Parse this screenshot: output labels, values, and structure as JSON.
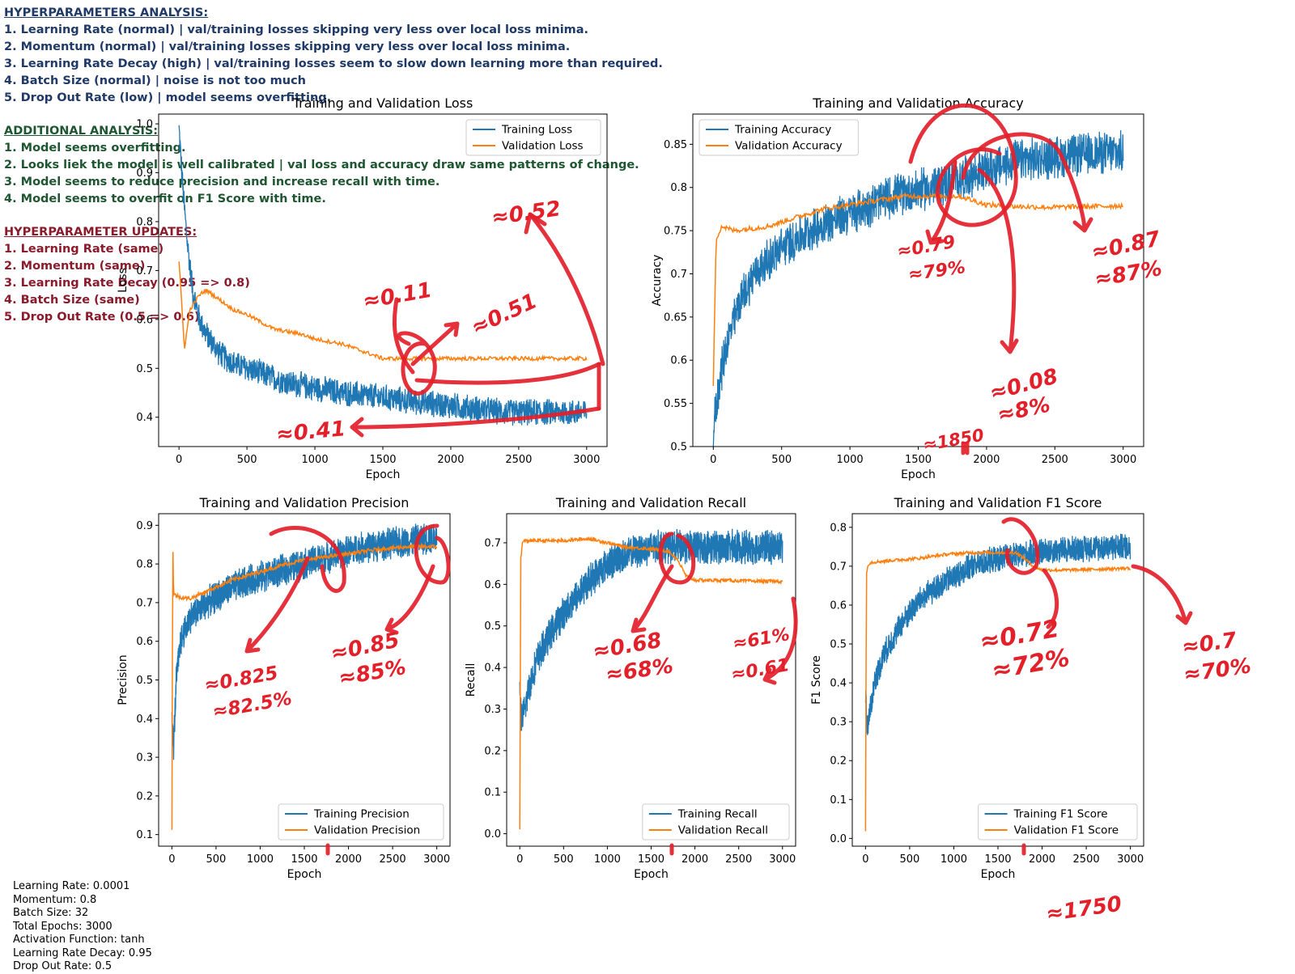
{
  "notes": {
    "analysis_title": "HYPERPARAMETERS ANALYSIS:",
    "analysis": [
      "1. Learning Rate (normal) | val/training losses skipping very less over local loss minima.",
      "2. Momentum (normal) | val/training losses skipping very less over local loss minima.",
      "3. Learning Rate Decay (high) | val/training losses seem to slow down learning more than required.",
      "4. Batch Size (normal) | noise is not too much",
      "5. Drop Out Rate (low) | model seems overfitting."
    ],
    "additional_title": "ADDITIONAL ANALYSIS:",
    "additional": [
      "1. Model seems overfitting.",
      "2. Looks liek the model is well calibrated | val loss and accuracy draw same patterns of change.",
      "3. Model seems to reduce precision and increase recall with time.",
      "4. Model seems to overfit on F1 Score with time."
    ],
    "updates_title": "HYPERPARAMETER UPDATES:",
    "updates": [
      "1. Learning Rate (same)",
      "2. Momentum (same)",
      "3. Learning Rate Decay (0.95 => 0.8)",
      "4. Batch Size (same)",
      "5. Drop Out Rate (0.5 => 0.6)"
    ]
  },
  "hyperparams": [
    "Learning Rate: 0.0001",
    "Momentum: 0.8",
    "Batch Size: 32",
    "Total Epochs: 3000",
    "Activation Function: tanh",
    "Learning Rate Decay: 0.95",
    "Drop Out Rate: 0.5"
  ],
  "colors": {
    "training": "#1f77b4",
    "validation": "#ff7f0e",
    "annotation": "#e3202a"
  },
  "chart_data": [
    {
      "id": "loss",
      "type": "line",
      "title": "Training and Validation Loss",
      "xlabel": "Epoch",
      "ylabel": "Loss",
      "xlim": [
        -150,
        3150
      ],
      "ylim": [
        0.34,
        1.02
      ],
      "xticks": [
        0,
        500,
        1000,
        1500,
        2000,
        2500,
        3000
      ],
      "yticks": [
        0.4,
        0.5,
        0.6,
        0.7,
        0.8,
        0.9,
        1.0
      ],
      "legend": "top-right",
      "series": [
        {
          "name": "Training Loss",
          "x": [
            0,
            30,
            60,
            100,
            150,
            200,
            300,
            400,
            600,
            800,
            1000,
            1200,
            1500,
            1800,
            2100,
            2400,
            2700,
            3000
          ],
          "y": [
            0.99,
            0.86,
            0.76,
            0.66,
            0.6,
            0.57,
            0.53,
            0.51,
            0.49,
            0.47,
            0.46,
            0.45,
            0.44,
            0.43,
            0.42,
            0.41,
            0.41,
            0.41
          ],
          "noise": 0.02
        },
        {
          "name": "Validation Loss",
          "x": [
            0,
            40,
            80,
            150,
            200,
            300,
            400,
            500,
            700,
            900,
            1000,
            1200,
            1300,
            1500,
            1700,
            1900,
            2100,
            2400,
            2700,
            3000
          ],
          "y": [
            0.72,
            0.54,
            0.62,
            0.65,
            0.66,
            0.64,
            0.62,
            0.61,
            0.58,
            0.57,
            0.56,
            0.55,
            0.54,
            0.52,
            0.52,
            0.52,
            0.52,
            0.52,
            0.52,
            0.52
          ],
          "noise": 0.004
        }
      ]
    },
    {
      "id": "accuracy",
      "type": "line",
      "title": "Training and Validation Accuracy",
      "xlabel": "Epoch",
      "ylabel": "Accuracy",
      "xlim": [
        -150,
        3150
      ],
      "ylim": [
        0.5,
        0.885
      ],
      "xticks": [
        0,
        500,
        1000,
        1500,
        2000,
        2500,
        3000
      ],
      "yticks": [
        0.5,
        0.55,
        0.6,
        0.65,
        0.7,
        0.75,
        0.8,
        0.85
      ],
      "legend": "top-left",
      "series": [
        {
          "name": "Training Accuracy",
          "x": [
            0,
            50,
            100,
            200,
            300,
            500,
            700,
            1000,
            1300,
            1600,
            1800,
            2000,
            2200,
            2500,
            2800,
            3000
          ],
          "y": [
            0.52,
            0.58,
            0.62,
            0.67,
            0.7,
            0.73,
            0.75,
            0.77,
            0.79,
            0.8,
            0.81,
            0.82,
            0.83,
            0.835,
            0.84,
            0.84
          ],
          "noise": 0.018
        },
        {
          "name": "Validation Accuracy",
          "x": [
            0,
            20,
            60,
            150,
            400,
            600,
            800,
            1000,
            1200,
            1400,
            1600,
            1800,
            1900,
            2000,
            2200,
            2500,
            2800,
            3000
          ],
          "y": [
            0.57,
            0.74,
            0.755,
            0.75,
            0.755,
            0.765,
            0.775,
            0.78,
            0.785,
            0.79,
            0.79,
            0.79,
            0.785,
            0.78,
            0.778,
            0.777,
            0.778,
            0.779
          ],
          "noise": 0.003
        }
      ]
    },
    {
      "id": "precision",
      "type": "line",
      "title": "Training and Validation Precision",
      "xlabel": "Epoch",
      "ylabel": "Precision",
      "xlim": [
        -150,
        3150
      ],
      "ylim": [
        0.07,
        0.93
      ],
      "xticks": [
        0,
        500,
        1000,
        1500,
        2000,
        2500,
        3000
      ],
      "yticks": [
        0.1,
        0.2,
        0.3,
        0.4,
        0.5,
        0.6,
        0.7,
        0.8,
        0.9
      ],
      "legend": "bottom-right",
      "series": [
        {
          "name": "Training Precision",
          "x": [
            0,
            20,
            50,
            100,
            200,
            400,
            600,
            900,
            1200,
            1500,
            1800,
            2100,
            2400,
            2700,
            3000
          ],
          "y": [
            0.38,
            0.33,
            0.5,
            0.6,
            0.66,
            0.7,
            0.73,
            0.76,
            0.78,
            0.8,
            0.82,
            0.84,
            0.85,
            0.86,
            0.87
          ],
          "noise": 0.03
        },
        {
          "name": "Validation Precision",
          "x": [
            0,
            10,
            20,
            40,
            80,
            200,
            400,
            700,
            1000,
            1300,
            1500,
            1800,
            2100,
            2400,
            2700,
            3000
          ],
          "y": [
            0.11,
            0.86,
            0.72,
            0.72,
            0.715,
            0.71,
            0.73,
            0.76,
            0.78,
            0.8,
            0.81,
            0.82,
            0.83,
            0.84,
            0.845,
            0.845
          ],
          "noise": 0.005
        }
      ]
    },
    {
      "id": "recall",
      "type": "line",
      "title": "Training and Validation Recall",
      "xlabel": "Epoch",
      "ylabel": "Recall",
      "xlim": [
        -150,
        3150
      ],
      "ylim": [
        -0.03,
        0.77
      ],
      "xticks": [
        0,
        500,
        1000,
        1500,
        2000,
        2500,
        3000
      ],
      "yticks": [
        0.0,
        0.1,
        0.2,
        0.3,
        0.4,
        0.5,
        0.6,
        0.7
      ],
      "legend": "bottom-right",
      "series": [
        {
          "name": "Training Recall",
          "x": [
            0,
            20,
            60,
            100,
            200,
            400,
            600,
            800,
            1000,
            1200,
            1500,
            1800,
            2100,
            2400,
            2700,
            3000
          ],
          "y": [
            0.36,
            0.27,
            0.3,
            0.35,
            0.42,
            0.5,
            0.56,
            0.61,
            0.65,
            0.67,
            0.69,
            0.69,
            0.69,
            0.69,
            0.69,
            0.69
          ],
          "noise": 0.03
        },
        {
          "name": "Validation Recall",
          "x": [
            0,
            10,
            30,
            60,
            500,
            800,
            1000,
            1200,
            1500,
            1700,
            1800,
            1900,
            2000,
            2300,
            2600,
            3000
          ],
          "y": [
            0.01,
            0.66,
            0.7,
            0.705,
            0.705,
            0.71,
            0.7,
            0.69,
            0.685,
            0.68,
            0.66,
            0.62,
            0.61,
            0.61,
            0.608,
            0.607
          ],
          "noise": 0.004
        }
      ]
    },
    {
      "id": "f1",
      "type": "line",
      "title": "Training and Validation F1 Score",
      "xlabel": "Epoch",
      "ylabel": "F1 Score",
      "xlim": [
        -150,
        3150
      ],
      "ylim": [
        -0.02,
        0.835
      ],
      "xticks": [
        0,
        500,
        1000,
        1500,
        2000,
        2500,
        3000
      ],
      "yticks": [
        0.0,
        0.1,
        0.2,
        0.3,
        0.4,
        0.5,
        0.6,
        0.7,
        0.8
      ],
      "legend": "bottom-right",
      "series": [
        {
          "name": "Training F1 Score",
          "x": [
            0,
            20,
            60,
            100,
            200,
            400,
            600,
            900,
            1200,
            1500,
            1800,
            2100,
            2400,
            2700,
            3000
          ],
          "y": [
            0.37,
            0.29,
            0.34,
            0.4,
            0.47,
            0.55,
            0.61,
            0.66,
            0.7,
            0.72,
            0.73,
            0.74,
            0.745,
            0.75,
            0.75
          ],
          "noise": 0.025
        },
        {
          "name": "Validation F1 Score",
          "x": [
            0,
            10,
            30,
            60,
            300,
            600,
            900,
            1200,
            1500,
            1700,
            1800,
            1900,
            2000,
            2300,
            2600,
            3000
          ],
          "y": [
            0.02,
            0.68,
            0.705,
            0.71,
            0.715,
            0.72,
            0.73,
            0.735,
            0.735,
            0.735,
            0.72,
            0.7,
            0.69,
            0.69,
            0.692,
            0.695
          ],
          "noise": 0.004
        }
      ]
    }
  ],
  "annotations": [
    "≈0.52",
    "≈0.11",
    "≈0.51",
    "≈0.41",
    "≈0.79",
    "≈79%",
    "≈0.87",
    "≈87%",
    "≈0.08",
    "≈8%",
    "≈1850",
    "≈0.825",
    "≈82.5%",
    "≈0.85",
    "≈85%",
    "≈0.68",
    "≈68%",
    "≈61%",
    "≈0.61",
    "≈0.72",
    "≈72%",
    "≈0.7",
    "≈70%",
    "≈1750"
  ]
}
